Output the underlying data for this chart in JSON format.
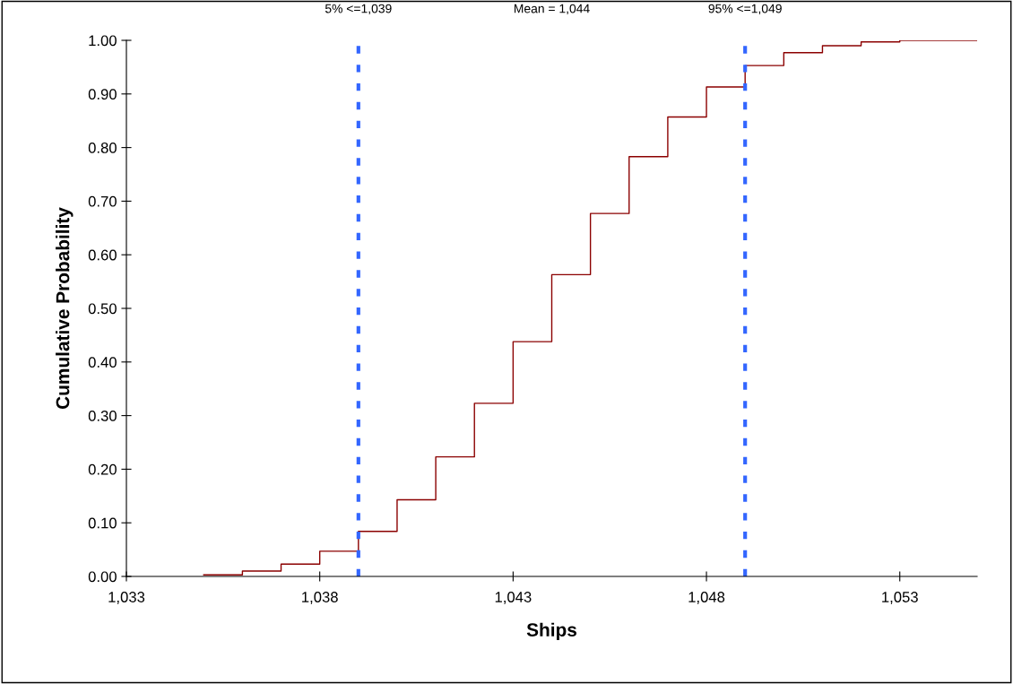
{
  "chart_data": {
    "type": "step",
    "xlabel": "Ships",
    "ylabel": "Cumulative Probability",
    "x": [
      1035,
      1036,
      1037,
      1038,
      1039,
      1040,
      1041,
      1042,
      1043,
      1044,
      1045,
      1046,
      1047,
      1048,
      1049,
      1050,
      1051,
      1052,
      1053,
      1055
    ],
    "series": [
      {
        "color": "#8b0000",
        "values": [
          0.003,
          0.01,
          0.023,
          0.047,
          0.084,
          0.143,
          0.223,
          0.323,
          0.438,
          0.563,
          0.677,
          0.783,
          0.857,
          0.913,
          0.953,
          0.977,
          0.99,
          0.997,
          1.0,
          1.0
        ]
      }
    ],
    "xlim": [
      1033,
      1055
    ],
    "xticks": [
      {
        "value": 1033,
        "label": "1,033"
      },
      {
        "value": 1038,
        "label": "1,038"
      },
      {
        "value": 1043,
        "label": "1,043"
      },
      {
        "value": 1048,
        "label": "1,048"
      },
      {
        "value": 1053,
        "label": "1,053"
      }
    ],
    "ylim": [
      0,
      1
    ],
    "yticks": [
      {
        "value": 0,
        "label": "0.00"
      },
      {
        "value": 0.1,
        "label": "0.10"
      },
      {
        "value": 0.2,
        "label": "0.20"
      },
      {
        "value": 0.3,
        "label": "0.30"
      },
      {
        "value": 0.4,
        "label": "0.40"
      },
      {
        "value": 0.5,
        "label": "0.50"
      },
      {
        "value": 0.6,
        "label": "0.60"
      },
      {
        "value": 0.7,
        "label": "0.70"
      },
      {
        "value": 0.8,
        "label": "0.80"
      },
      {
        "value": 0.9,
        "label": "0.90"
      },
      {
        "value": 1.0,
        "label": "1.00"
      }
    ],
    "ref_lines": [
      {
        "axis": "x",
        "value": 1039,
        "label": "5% <=1,039",
        "color": "#3366ff",
        "line_style": "dashed"
      },
      {
        "axis": "x",
        "value": 1049,
        "label": "95% <=1,049",
        "color": "#3366ff",
        "line_style": "dashed"
      }
    ],
    "annotations": [
      "Mean = 1,044"
    ],
    "grid": false,
    "legend": false
  }
}
